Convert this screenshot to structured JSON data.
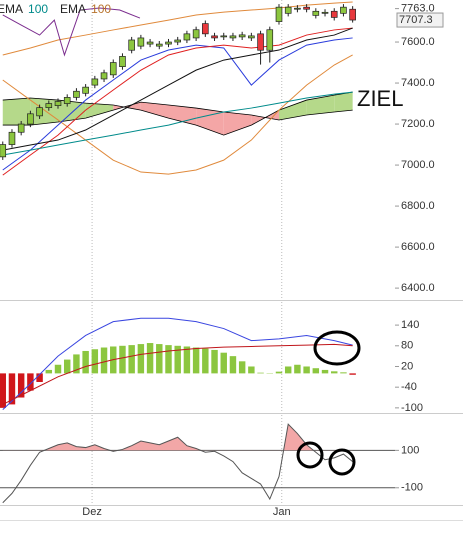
{
  "chart_data": [
    {
      "type": "candlestick",
      "legend": [
        {
          "name": "EMA",
          "period": 100,
          "color": "#008b8b"
        },
        {
          "name": "EMA",
          "period": 100,
          "color": "#b8742e"
        }
      ],
      "annotation": "ZIEL",
      "last_price": 7707.3,
      "ylim": [
        6342,
        7805
      ],
      "yticks": [
        {
          "value": 7763,
          "label": "7763.0"
        },
        {
          "value": 7600,
          "label": "7600.0"
        },
        {
          "value": 7400,
          "label": "7400.0"
        },
        {
          "value": 7200,
          "label": "7200.0"
        },
        {
          "value": 7000,
          "label": "7000.0"
        },
        {
          "value": 6800,
          "label": "6800.0"
        },
        {
          "value": 6600,
          "label": "6600.0"
        },
        {
          "value": 6400,
          "label": "6400.0"
        }
      ],
      "up_color": "#8cc63f",
      "down_color": "#e8383d",
      "open": [
        7040,
        7100,
        7160,
        7200,
        7240,
        7280,
        7290,
        7300,
        7330,
        7350,
        7390,
        7420,
        7440,
        7480,
        7560,
        7580,
        7590,
        7580,
        7590,
        7600,
        7610,
        7620,
        7690,
        7630,
        7625,
        7620,
        7625,
        7620,
        7640,
        7560,
        7700,
        7740,
        7760,
        7770,
        7730,
        7740,
        7750,
        7740,
        7760
      ],
      "high": [
        7115,
        7175,
        7215,
        7265,
        7295,
        7315,
        7325,
        7345,
        7375,
        7395,
        7435,
        7465,
        7515,
        7545,
        7625,
        7635,
        7615,
        7605,
        7615,
        7625,
        7655,
        7675,
        7705,
        7645,
        7645,
        7645,
        7650,
        7645,
        7655,
        7675,
        7785,
        7785,
        7780,
        7785,
        7765,
        7760,
        7765,
        7785,
        7775
      ],
      "low": [
        7025,
        7085,
        7145,
        7185,
        7225,
        7265,
        7275,
        7285,
        7315,
        7335,
        7375,
        7405,
        7425,
        7465,
        7545,
        7565,
        7575,
        7565,
        7575,
        7585,
        7595,
        7605,
        7625,
        7605,
        7610,
        7605,
        7610,
        7605,
        7490,
        7500,
        7685,
        7725,
        7745,
        7745,
        7715,
        7725,
        7705,
        7725,
        7695
      ],
      "close": [
        7100,
        7160,
        7200,
        7250,
        7280,
        7300,
        7310,
        7330,
        7360,
        7380,
        7420,
        7450,
        7500,
        7530,
        7610,
        7620,
        7600,
        7590,
        7600,
        7610,
        7640,
        7660,
        7640,
        7620,
        7630,
        7630,
        7635,
        7630,
        7560,
        7660,
        7770,
        7770,
        7765,
        7760,
        7750,
        7745,
        7720,
        7770,
        7707.3
      ],
      "cloud": {
        "x": [
          0,
          3,
          6,
          9,
          12,
          15,
          18,
          21,
          24,
          27,
          30,
          33,
          36,
          38
        ],
        "span_a": [
          7317,
          7327,
          7317,
          7302,
          7293,
          7268,
          7229,
          7195,
          7146,
          7195,
          7268,
          7317,
          7341,
          7356
        ],
        "span_b": [
          7195,
          7195,
          7210,
          7229,
          7268,
          7307,
          7293,
          7278,
          7259,
          7244,
          7220,
          7244,
          7259,
          7268
        ],
        "up_color": "#b5d98a",
        "down_color": "#f4a6a6",
        "line_color": "#000000"
      },
      "series": [
        {
          "color": "#e08a3c",
          "x": [
            0,
            3,
            6,
            9,
            12,
            15,
            18,
            21,
            24,
            27,
            30,
            33,
            36,
            38
          ],
          "values": [
            7537,
            7571,
            7610,
            7634,
            7659,
            7683,
            7707,
            7732,
            7746,
            7756,
            7766,
            7780,
            7790,
            7795
          ]
        },
        {
          "color": "#e08a3c",
          "x": [
            0,
            3,
            6,
            9,
            12,
            15,
            18,
            21,
            24,
            27,
            30,
            33,
            36,
            38
          ],
          "values": [
            7415,
            7317,
            7220,
            7122,
            7024,
            6966,
            6956,
            6976,
            7024,
            7122,
            7268,
            7390,
            7488,
            7537
          ]
        },
        {
          "color": "#2a3cdc",
          "x": [
            0,
            3,
            6,
            9,
            12,
            15,
            18,
            21,
            24,
            27,
            30,
            33,
            36,
            38
          ],
          "values": [
            6976,
            7073,
            7195,
            7317,
            7415,
            7512,
            7561,
            7585,
            7571,
            7390,
            7512,
            7585,
            7610,
            7620
          ]
        },
        {
          "color": "#e02020",
          "x": [
            0,
            3,
            6,
            9,
            12,
            15,
            18,
            21,
            24,
            27,
            30,
            33,
            36,
            38
          ],
          "values": [
            6951,
            7049,
            7146,
            7268,
            7366,
            7463,
            7537,
            7571,
            7585,
            7571,
            7585,
            7634,
            7659,
            7668
          ]
        },
        {
          "color": "#111111",
          "x": [
            0,
            3,
            6,
            9,
            12,
            15,
            18,
            21,
            24,
            27,
            30,
            33,
            36,
            38
          ],
          "values": [
            7073,
            7098,
            7122,
            7171,
            7244,
            7317,
            7390,
            7463,
            7512,
            7537,
            7561,
            7610,
            7634,
            7668
          ]
        },
        {
          "color": "#008b8b",
          "x": [
            0,
            3,
            6,
            9,
            12,
            15,
            18,
            21,
            24,
            27,
            30,
            33,
            36,
            38
          ],
          "values": [
            7049,
            7073,
            7098,
            7122,
            7146,
            7171,
            7195,
            7229,
            7259,
            7278,
            7302,
            7327,
            7346,
            7356
          ]
        },
        {
          "color": "#7b2d8e",
          "x": [
            0,
            2,
            4,
            5.6,
            6.7,
            8.4,
            10.5,
            12.7,
            14.9
          ],
          "values": [
            7732,
            7683,
            7634,
            7707,
            7537,
            7756,
            7766,
            7756,
            7717
          ]
        }
      ]
    },
    {
      "type": "bar",
      "ylim": [
        -112,
        207
      ],
      "yticks": [
        140,
        80,
        20,
        -40,
        -100
      ],
      "pos_color": "#8cc63f",
      "neg_color": "#d0161b",
      "values": [
        -100,
        -90,
        -70,
        -50,
        -25,
        10,
        25,
        40,
        55,
        65,
        70,
        75,
        78,
        80,
        82,
        85,
        88,
        85,
        82,
        80,
        78,
        75,
        72,
        68,
        60,
        50,
        35,
        20,
        2,
        1,
        5,
        20,
        25,
        20,
        15,
        10,
        6,
        3,
        -4
      ],
      "series": [
        {
          "color": "#3a46e0",
          "x": [
            0,
            3,
            6,
            9,
            12,
            15,
            18,
            21,
            24,
            27,
            30,
            33,
            36,
            38
          ],
          "values": [
            -105,
            -30,
            50,
            110,
            150,
            160,
            160,
            150,
            130,
            95,
            100,
            110,
            95,
            82
          ]
        },
        {
          "color": "#c0161b",
          "x": [
            0,
            3,
            6,
            9,
            12,
            15,
            18,
            21,
            24,
            27,
            30,
            33,
            36,
            38
          ],
          "values": [
            -90,
            -50,
            -10,
            20,
            40,
            55,
            65,
            72,
            76,
            78,
            80,
            82,
            84,
            80
          ]
        }
      ]
    },
    {
      "type": "line",
      "ylim": [
        -192,
        289
      ],
      "yticks": [
        100,
        -100
      ],
      "grid": true,
      "color": "#555555",
      "fill_above": 100,
      "fill_color": "#f2a7a7",
      "values": [
        -180,
        -130,
        -60,
        20,
        90,
        110,
        130,
        140,
        120,
        115,
        130,
        110,
        95,
        105,
        125,
        150,
        140,
        130,
        150,
        170,
        125,
        110,
        90,
        95,
        70,
        40,
        -20,
        -50,
        -80,
        -160,
        -40,
        240,
        190,
        130,
        90,
        50,
        60,
        80,
        40
      ],
      "xlim": [
        -0.3,
        42.6
      ],
      "xticks": [
        {
          "value": 9.7,
          "label": "Dez"
        },
        {
          "value": 30.3,
          "label": "Jan"
        }
      ]
    }
  ]
}
